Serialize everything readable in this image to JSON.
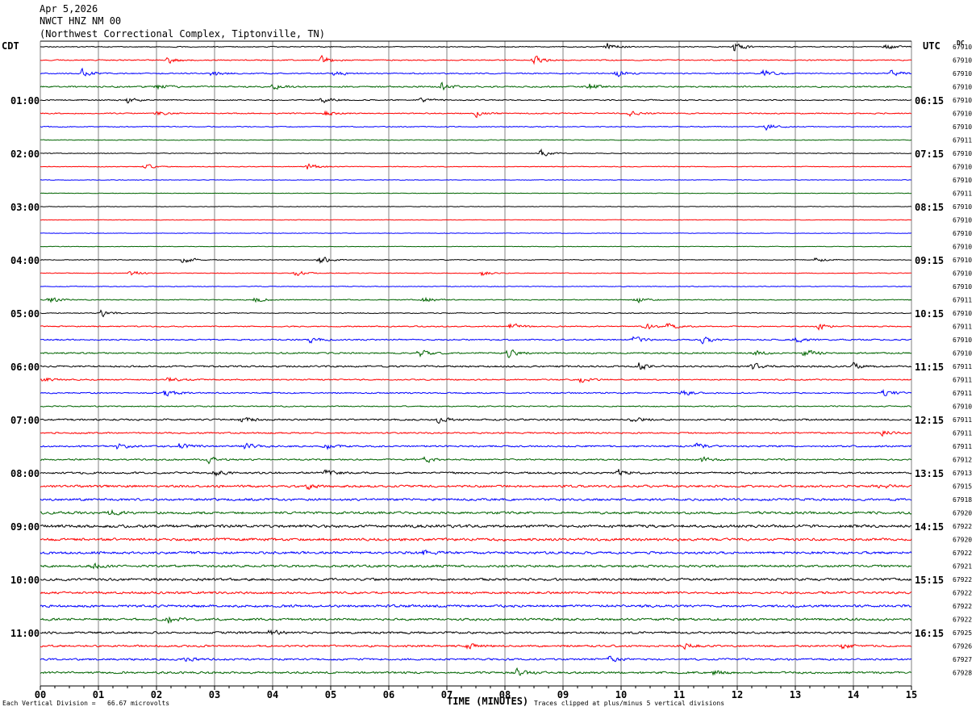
{
  "header": {
    "date": "Apr 5,2026",
    "station": "NWCT HNZ NM 00",
    "location": "(Northwest Correctional Complex, Tiptonville, TN)"
  },
  "labels": {
    "left_tz": "CDT",
    "right_tz": "UTC",
    "dc": "DC"
  },
  "footer": {
    "left": "Each Vertical Division =   66.67 microvolts",
    "axis_title": "TIME (MINUTES)",
    "right": "Traces clipped at plus/minus 5 vertical divisions"
  },
  "colors": {
    "cycle": [
      "#000000",
      "#ff0000",
      "#0000ff",
      "#006400"
    ],
    "grid": "#808080"
  },
  "chart_data": {
    "type": "line",
    "x_ticks": [
      "00",
      "01",
      "02",
      "03",
      "04",
      "05",
      "06",
      "07",
      "08",
      "09",
      "10",
      "11",
      "12",
      "13",
      "14",
      "15"
    ],
    "xlim": [
      0,
      15
    ],
    "left_hour_labels": [
      "01:00",
      "02:00",
      "03:00",
      "04:00",
      "05:00",
      "06:00",
      "07:00",
      "08:00",
      "09:00",
      "10:00",
      "11:00"
    ],
    "right_hour_labels": [
      "06:15",
      "07:15",
      "08:15",
      "09:15",
      "10:15",
      "11:15",
      "12:15",
      "13:15",
      "14:15",
      "15:15",
      "16:15"
    ],
    "hour_label_every_n_traces": 4,
    "hour_label_first_trace": 4,
    "dc_offsets": [
      "67910",
      "67910",
      "67910",
      "67910",
      "67910",
      "67910",
      "67910",
      "67911",
      "67910",
      "67910",
      "67910",
      "67911",
      "67910",
      "67910",
      "67910",
      "67910",
      "67910",
      "67910",
      "67910",
      "67911",
      "67910",
      "67911",
      "67910",
      "67910",
      "67911",
      "67911",
      "67911",
      "67910",
      "67911",
      "67911",
      "67911",
      "67912",
      "67913",
      "67915",
      "67918",
      "67920",
      "67922",
      "67920",
      "67922",
      "67921",
      "67922",
      "67922",
      "67922",
      "67922",
      "67925",
      "67926",
      "67927",
      "67928"
    ],
    "trace_noise_levels": [
      0.5,
      0.6,
      0.6,
      0.8,
      0.6,
      0.6,
      0.5,
      0.4,
      0.4,
      0.4,
      0.3,
      0.3,
      0.3,
      0.3,
      0.3,
      0.3,
      0.4,
      0.4,
      0.4,
      0.5,
      0.5,
      0.6,
      0.7,
      0.8,
      0.9,
      0.7,
      0.7,
      0.6,
      0.9,
      0.8,
      0.9,
      0.8,
      1.0,
      1.2,
      1.2,
      1.3,
      1.5,
      1.4,
      1.3,
      1.2,
      1.3,
      1.2,
      1.3,
      1.2,
      1.1,
      1.0,
      1.0,
      1.1
    ],
    "events": [
      {
        "trace": 0,
        "minute": 9.75,
        "amp": 7
      },
      {
        "trace": 0,
        "minute": 11.95,
        "amp": 8
      },
      {
        "trace": 0,
        "minute": 14.55,
        "amp": 5
      },
      {
        "trace": 1,
        "minute": 2.2,
        "amp": 5
      },
      {
        "trace": 1,
        "minute": 4.85,
        "amp": 6
      },
      {
        "trace": 1,
        "minute": 8.5,
        "amp": 6
      },
      {
        "trace": 2,
        "minute": 0.7,
        "amp": 7
      },
      {
        "trace": 2,
        "minute": 2.95,
        "amp": 5
      },
      {
        "trace": 2,
        "minute": 5.05,
        "amp": 5
      },
      {
        "trace": 2,
        "minute": 9.9,
        "amp": 6
      },
      {
        "trace": 2,
        "minute": 12.45,
        "amp": 5
      },
      {
        "trace": 2,
        "minute": 14.65,
        "amp": 6
      },
      {
        "trace": 3,
        "minute": 2.0,
        "amp": 5
      },
      {
        "trace": 3,
        "minute": 4.0,
        "amp": 5
      },
      {
        "trace": 3,
        "minute": 6.9,
        "amp": 6
      },
      {
        "trace": 3,
        "minute": 9.45,
        "amp": 5
      },
      {
        "trace": 4,
        "minute": 1.5,
        "amp": 5
      },
      {
        "trace": 4,
        "minute": 4.85,
        "amp": 5
      },
      {
        "trace": 4,
        "minute": 6.55,
        "amp": 4
      },
      {
        "trace": 5,
        "minute": 2.0,
        "amp": 4
      },
      {
        "trace": 5,
        "minute": 4.9,
        "amp": 4
      },
      {
        "trace": 5,
        "minute": 7.5,
        "amp": 5
      },
      {
        "trace": 5,
        "minute": 10.15,
        "amp": 5
      },
      {
        "trace": 6,
        "minute": 12.5,
        "amp": 5
      },
      {
        "trace": 8,
        "minute": 8.6,
        "amp": 6
      },
      {
        "trace": 9,
        "minute": 1.8,
        "amp": 4
      },
      {
        "trace": 9,
        "minute": 4.6,
        "amp": 6
      },
      {
        "trace": 16,
        "minute": 2.45,
        "amp": 7
      },
      {
        "trace": 16,
        "minute": 4.8,
        "amp": 7
      },
      {
        "trace": 16,
        "minute": 13.35,
        "amp": 4
      },
      {
        "trace": 17,
        "minute": 1.55,
        "amp": 5
      },
      {
        "trace": 17,
        "minute": 4.4,
        "amp": 5
      },
      {
        "trace": 17,
        "minute": 7.6,
        "amp": 4
      },
      {
        "trace": 19,
        "minute": 0.15,
        "amp": 5
      },
      {
        "trace": 19,
        "minute": 3.7,
        "amp": 5
      },
      {
        "trace": 19,
        "minute": 6.6,
        "amp": 5
      },
      {
        "trace": 19,
        "minute": 10.25,
        "amp": 5
      },
      {
        "trace": 20,
        "minute": 1.05,
        "amp": 6
      },
      {
        "trace": 21,
        "minute": 8.1,
        "amp": 5
      },
      {
        "trace": 21,
        "minute": 10.4,
        "amp": 6
      },
      {
        "trace": 21,
        "minute": 10.8,
        "amp": 5
      },
      {
        "trace": 21,
        "minute": 13.4,
        "amp": 5
      },
      {
        "trace": 22,
        "minute": 4.65,
        "amp": 5
      },
      {
        "trace": 22,
        "minute": 10.2,
        "amp": 5
      },
      {
        "trace": 22,
        "minute": 11.4,
        "amp": 5
      },
      {
        "trace": 22,
        "minute": 13.0,
        "amp": 5
      },
      {
        "trace": 23,
        "minute": 6.5,
        "amp": 6
      },
      {
        "trace": 23,
        "minute": 8.05,
        "amp": 6
      },
      {
        "trace": 23,
        "minute": 12.3,
        "amp": 4
      },
      {
        "trace": 23,
        "minute": 13.15,
        "amp": 7
      },
      {
        "trace": 24,
        "minute": 10.3,
        "amp": 6
      },
      {
        "trace": 24,
        "minute": 12.25,
        "amp": 5
      },
      {
        "trace": 24,
        "minute": 14.0,
        "amp": 5
      },
      {
        "trace": 25,
        "minute": 0.05,
        "amp": 4
      },
      {
        "trace": 25,
        "minute": 2.2,
        "amp": 5
      },
      {
        "trace": 25,
        "minute": 9.3,
        "amp": 4
      },
      {
        "trace": 26,
        "minute": 2.15,
        "amp": 6
      },
      {
        "trace": 26,
        "minute": 11.05,
        "amp": 4
      },
      {
        "trace": 26,
        "minute": 14.5,
        "amp": 6
      },
      {
        "trace": 28,
        "minute": 3.45,
        "amp": 5
      },
      {
        "trace": 28,
        "minute": 6.85,
        "amp": 5
      },
      {
        "trace": 28,
        "minute": 10.2,
        "amp": 4
      },
      {
        "trace": 29,
        "minute": 14.5,
        "amp": 4
      },
      {
        "trace": 30,
        "minute": 1.3,
        "amp": 5
      },
      {
        "trace": 30,
        "minute": 2.4,
        "amp": 5
      },
      {
        "trace": 30,
        "minute": 3.5,
        "amp": 5
      },
      {
        "trace": 30,
        "minute": 4.9,
        "amp": 5
      },
      {
        "trace": 30,
        "minute": 11.3,
        "amp": 4
      },
      {
        "trace": 31,
        "minute": 2.9,
        "amp": 5
      },
      {
        "trace": 31,
        "minute": 6.6,
        "amp": 5
      },
      {
        "trace": 31,
        "minute": 11.4,
        "amp": 4
      },
      {
        "trace": 32,
        "minute": 3.0,
        "amp": 5
      },
      {
        "trace": 32,
        "minute": 4.9,
        "amp": 5
      },
      {
        "trace": 32,
        "minute": 9.95,
        "amp": 5
      },
      {
        "trace": 33,
        "minute": 4.6,
        "amp": 4
      },
      {
        "trace": 33,
        "minute": 14.4,
        "amp": 4
      },
      {
        "trace": 35,
        "minute": 1.2,
        "amp": 4
      },
      {
        "trace": 38,
        "minute": 6.6,
        "amp": 4
      },
      {
        "trace": 39,
        "minute": 0.9,
        "amp": 4
      },
      {
        "trace": 43,
        "minute": 2.2,
        "amp": 5
      },
      {
        "trace": 44,
        "minute": 3.95,
        "amp": 5
      },
      {
        "trace": 45,
        "minute": 7.35,
        "amp": 4
      },
      {
        "trace": 45,
        "minute": 11.1,
        "amp": 4
      },
      {
        "trace": 45,
        "minute": 13.8,
        "amp": 4
      },
      {
        "trace": 46,
        "minute": 2.5,
        "amp": 3
      },
      {
        "trace": 46,
        "minute": 9.8,
        "amp": 4
      },
      {
        "trace": 47,
        "minute": 8.2,
        "amp": 6
      },
      {
        "trace": 47,
        "minute": 11.6,
        "amp": 4
      }
    ]
  }
}
